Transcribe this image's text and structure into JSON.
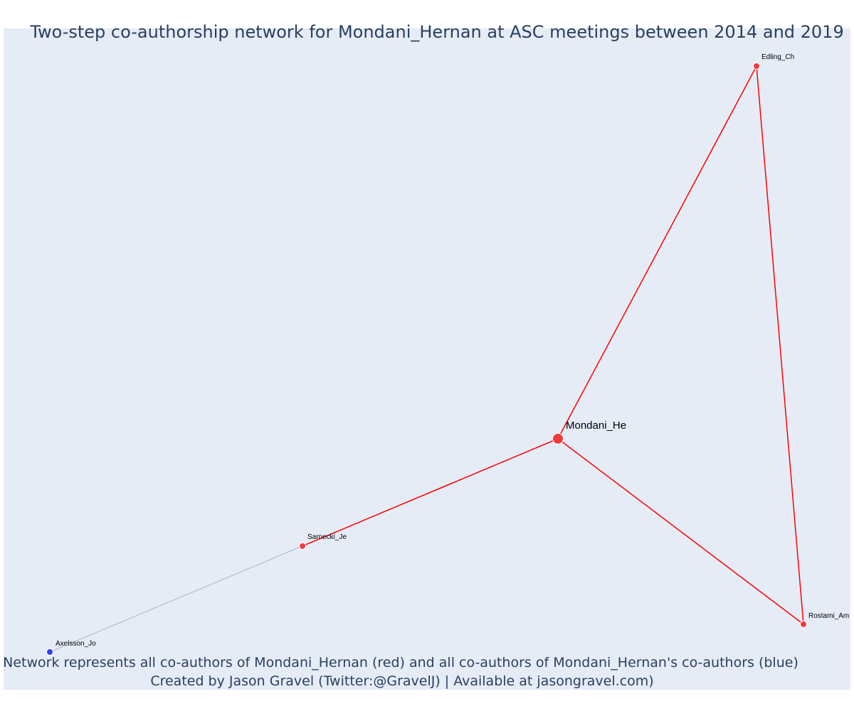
{
  "title": "Two-step co-authorship network for Mondani_Hernan at ASC meetings between 2014 and 2019",
  "footnote": {
    "line1": "Network represents all co-authors of Mondani_Hernan (red) and all co-authors of Mondani_Hernan's co-authors (blue)",
    "line2": "Created by Jason Gravel (Twitter:@GravelJ) | Available at jasongravel.com)"
  },
  "colors": {
    "plot_background": "#e5ecf6",
    "title_text": "#2a3f5f",
    "ego_edge": "#ff0000",
    "other_edge": "#b4b4c4",
    "coauthor_node": "#ef3b3b",
    "second_step_node": "#3b3bef",
    "node_outline": "#ffffff"
  },
  "nodes": [
    {
      "id": "mondani",
      "label": "Mondani_He",
      "group": "ego"
    },
    {
      "id": "edling",
      "label": "Edling_Ch",
      "group": "coauthor"
    },
    {
      "id": "rostami",
      "label": "Rostami_Am",
      "group": "coauthor"
    },
    {
      "id": "sarnecki",
      "label": "Sarnecki_Je",
      "group": "coauthor"
    },
    {
      "id": "axelsson",
      "label": "Axelsson_Jo",
      "group": "second_step"
    }
  ],
  "edges": [
    {
      "source": "mondani",
      "target": "edling",
      "type": "ego"
    },
    {
      "source": "mondani",
      "target": "rostami",
      "type": "ego"
    },
    {
      "source": "mondani",
      "target": "sarnecki",
      "type": "ego"
    },
    {
      "source": "edling",
      "target": "rostami",
      "type": "ego"
    },
    {
      "source": "sarnecki",
      "target": "axelsson",
      "type": "other"
    }
  ]
}
